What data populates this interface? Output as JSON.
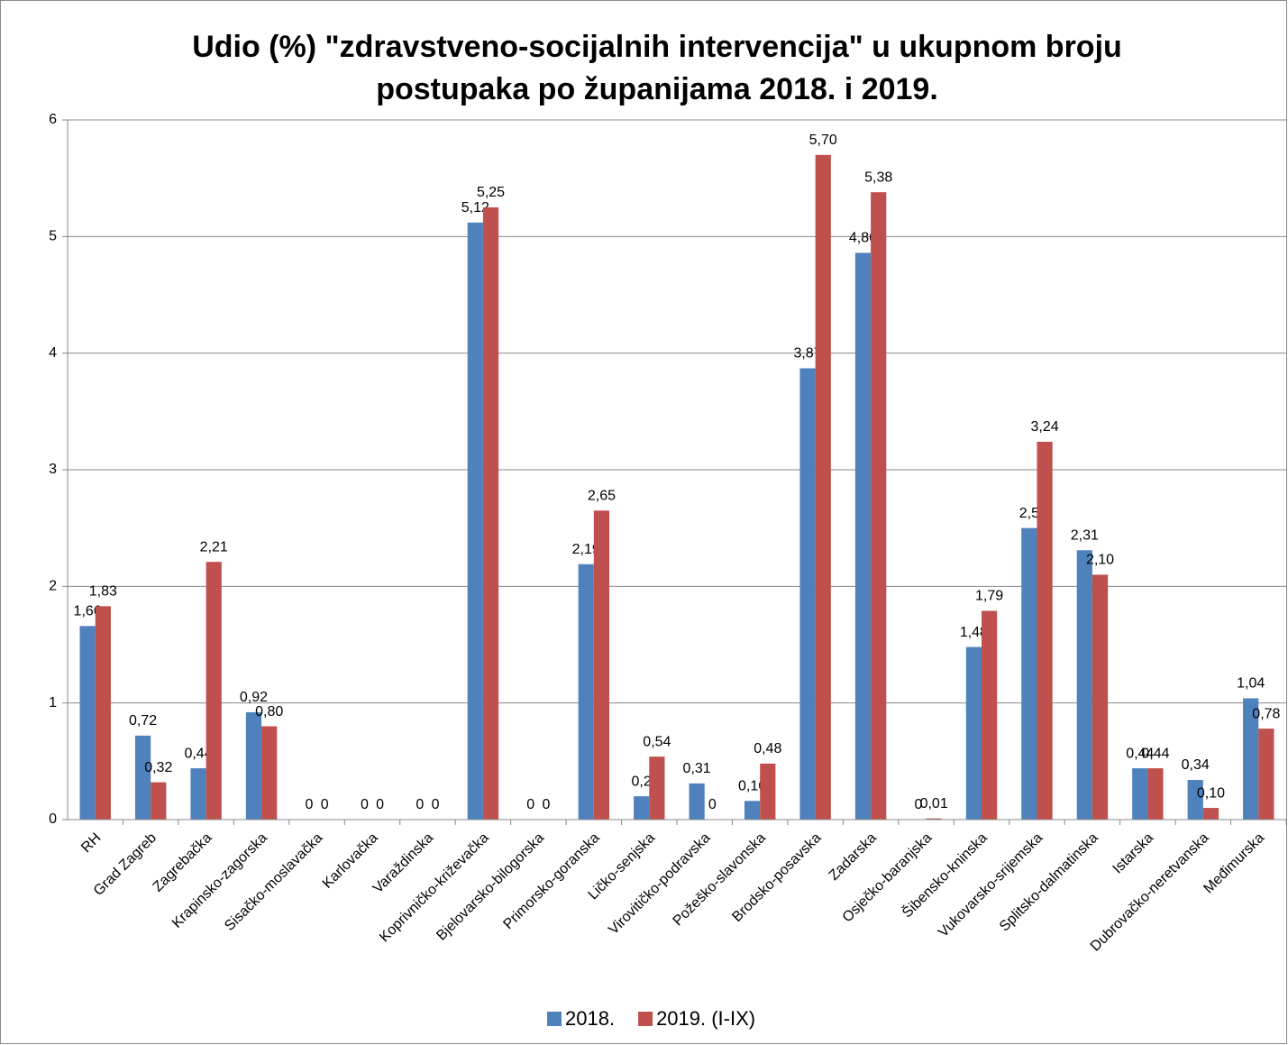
{
  "chart_data": {
    "type": "bar",
    "title": [
      "Udio (%) \"zdravstveno-socijalnih intervencija\" u ukupnom broju",
      "postupaka po županijama 2018. i 2019."
    ],
    "categories": [
      "RH",
      "Grad Zagreb",
      "Zagrebačka",
      "Krapinsko-zagorska",
      "Sisačko-moslavačka",
      "Karlovačka",
      "Varaždinska",
      "Koprivničko-križevačka",
      "Bjelovarsko-bilogorska",
      "Primorsko-goranska",
      "Ličko-senjska",
      "Virovitičko-podravska",
      "Požeško-slavonska",
      "Brodsko-posavska",
      "Zadarska",
      "Osječko-baranjska",
      "Šibensko-kninska",
      "Vukovarsko-srijemska",
      "Splitsko-dalmatinska",
      "Istarska",
      "Dubrovačko-neretvanska",
      "Međimurska"
    ],
    "series": [
      {
        "name": "2018.",
        "color": "#4f81bd",
        "values": [
          1.66,
          0.72,
          0.44,
          0.92,
          0,
          0,
          0,
          5.12,
          0,
          2.19,
          0.2,
          0.31,
          0.16,
          3.87,
          4.86,
          0,
          1.48,
          2.5,
          2.31,
          0.44,
          0.34,
          1.04
        ],
        "value_labels": [
          "1,66",
          "0,72",
          "0,44",
          "0,92",
          "0",
          "0",
          "0",
          "5,12",
          "0",
          "2,19",
          "0,2",
          "0,31",
          "0,16",
          "3,87",
          "4,86",
          "0",
          "1,48",
          "2,5",
          "2,31",
          "0,44",
          "0,34",
          "1,04"
        ]
      },
      {
        "name": "2019. (I-IX)",
        "color": "#c0504d",
        "values": [
          1.83,
          0.32,
          2.21,
          0.8,
          0,
          0,
          0,
          5.25,
          0,
          2.65,
          0.54,
          0,
          0.48,
          5.7,
          5.38,
          0.01,
          1.79,
          3.24,
          2.1,
          0.44,
          0.1,
          0.78
        ],
        "value_labels": [
          "1,83",
          "0,32",
          "2,21",
          "0,80",
          "0",
          "0",
          "0",
          "5,25",
          "0",
          "2,65",
          "0,54",
          "0",
          "0,48",
          "5,70",
          "5,38",
          "0,01",
          "1,79",
          "3,24",
          "2,10",
          "0,44",
          "0,10",
          "0,78"
        ]
      }
    ],
    "ylim": [
      0,
      6
    ],
    "yticks": [
      0,
      1,
      2,
      3,
      4,
      5,
      6
    ],
    "grid": true,
    "legend": "bottom"
  }
}
